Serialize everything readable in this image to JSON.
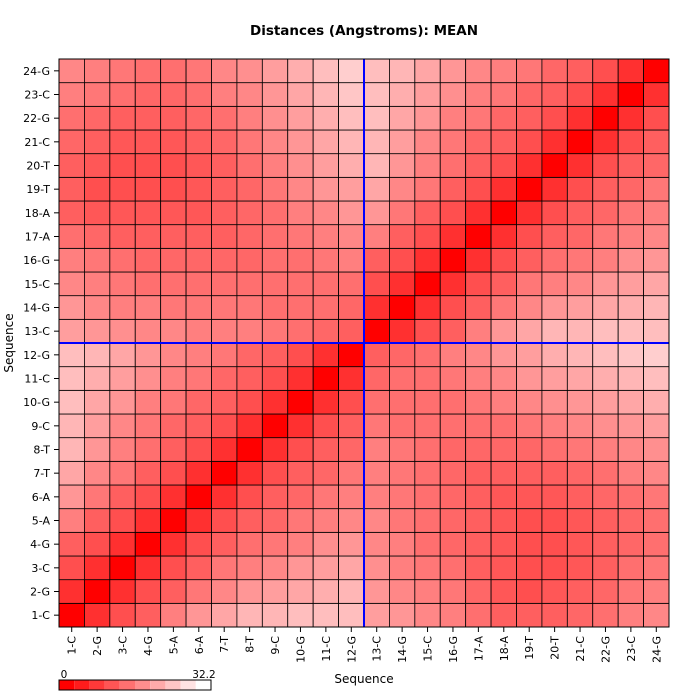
{
  "chart_data": {
    "type": "heatmap",
    "title": "Distances (Angstroms):  MEAN",
    "xlabel": "Sequence",
    "ylabel": "Sequence",
    "labels": [
      "1-C",
      "2-G",
      "3-C",
      "4-G",
      "5-A",
      "6-A",
      "7-T",
      "8-T",
      "9-C",
      "10-G",
      "11-C",
      "12-G",
      "13-C",
      "14-G",
      "15-C",
      "16-G",
      "17-A",
      "18-A",
      "19-T",
      "20-T",
      "21-C",
      "22-G",
      "23-C",
      "24-G"
    ],
    "value_range": [
      0,
      32.2
    ],
    "color_scale": {
      "low": "#ff0000",
      "high": "#ffffff"
    },
    "grid": true,
    "chain_divider_after": "12-G",
    "divider_color": "#0000ff",
    "legend": {
      "min_label": "0",
      "max_label": "32.2",
      "placement": "bottom-left"
    },
    "values": [
      [
        0,
        6,
        10,
        12,
        16,
        19,
        21,
        23,
        23,
        24,
        24,
        24,
        20,
        19,
        17,
        16,
        14,
        12,
        12,
        12,
        13,
        14,
        16,
        17
      ],
      [
        6,
        0,
        6,
        10,
        12,
        15,
        17,
        19,
        20,
        21,
        22,
        23,
        19,
        17,
        16,
        15,
        13,
        11,
        10,
        11,
        12,
        13,
        15,
        16
      ],
      [
        10,
        6,
        0,
        6,
        10,
        12,
        15,
        16,
        17,
        19,
        20,
        21,
        18,
        16,
        15,
        14,
        12,
        11,
        10,
        10,
        11,
        12,
        14,
        15
      ],
      [
        12,
        10,
        6,
        0,
        6,
        10,
        12,
        14,
        15,
        16,
        18,
        19,
        17,
        16,
        14,
        13,
        12,
        11,
        10,
        10,
        11,
        12,
        13,
        14
      ],
      [
        16,
        12,
        10,
        6,
        0,
        6,
        10,
        12,
        13,
        15,
        16,
        17,
        17,
        15,
        14,
        13,
        12,
        11,
        10,
        10,
        11,
        12,
        13,
        14
      ],
      [
        19,
        15,
        12,
        10,
        6,
        0,
        6,
        10,
        12,
        13,
        15,
        16,
        16,
        15,
        14,
        13,
        12,
        11,
        11,
        11,
        12,
        13,
        14,
        15
      ],
      [
        21,
        17,
        15,
        12,
        10,
        6,
        0,
        6,
        10,
        12,
        13,
        15,
        16,
        15,
        14,
        13,
        12,
        12,
        12,
        12,
        13,
        14,
        16,
        17
      ],
      [
        23,
        19,
        16,
        14,
        12,
        10,
        6,
        0,
        6,
        10,
        12,
        13,
        16,
        15,
        14,
        13,
        13,
        13,
        13,
        14,
        15,
        16,
        17,
        18
      ],
      [
        23,
        20,
        17,
        15,
        13,
        12,
        10,
        6,
        0,
        6,
        10,
        12,
        15,
        14,
        14,
        14,
        14,
        14,
        15,
        16,
        17,
        18,
        19,
        20
      ],
      [
        24,
        21,
        19,
        16,
        15,
        13,
        12,
        10,
        6,
        0,
        6,
        10,
        14,
        14,
        14,
        14,
        15,
        16,
        17,
        18,
        19,
        20,
        21,
        22
      ],
      [
        24,
        22,
        20,
        18,
        16,
        15,
        13,
        12,
        10,
        6,
        0,
        6,
        13,
        14,
        14,
        15,
        16,
        17,
        19,
        20,
        21,
        22,
        23,
        24
      ],
      [
        24,
        23,
        21,
        19,
        17,
        16,
        15,
        13,
        12,
        10,
        6,
        0,
        12,
        13,
        14,
        16,
        17,
        19,
        20,
        22,
        23,
        24,
        25,
        26
      ],
      [
        20,
        19,
        18,
        17,
        17,
        16,
        16,
        16,
        15,
        14,
        13,
        12,
        0,
        6,
        10,
        12,
        16,
        19,
        21,
        23,
        23,
        24,
        24,
        24
      ],
      [
        19,
        17,
        16,
        16,
        15,
        15,
        15,
        15,
        14,
        14,
        14,
        13,
        6,
        0,
        6,
        10,
        12,
        15,
        17,
        19,
        20,
        21,
        22,
        23
      ],
      [
        17,
        16,
        15,
        14,
        14,
        14,
        14,
        14,
        14,
        14,
        14,
        14,
        10,
        6,
        0,
        6,
        10,
        12,
        15,
        16,
        17,
        19,
        20,
        21
      ],
      [
        16,
        15,
        14,
        13,
        13,
        13,
        13,
        13,
        14,
        14,
        15,
        16,
        12,
        10,
        6,
        0,
        6,
        10,
        12,
        14,
        15,
        16,
        18,
        19
      ],
      [
        14,
        13,
        12,
        12,
        12,
        12,
        12,
        13,
        14,
        15,
        16,
        17,
        16,
        12,
        10,
        6,
        0,
        6,
        10,
        12,
        13,
        15,
        16,
        17
      ],
      [
        12,
        11,
        11,
        11,
        11,
        11,
        12,
        13,
        14,
        16,
        17,
        19,
        19,
        15,
        12,
        10,
        6,
        0,
        6,
        10,
        12,
        13,
        15,
        16
      ],
      [
        12,
        10,
        10,
        10,
        10,
        11,
        12,
        13,
        15,
        17,
        19,
        20,
        21,
        17,
        15,
        12,
        10,
        6,
        0,
        6,
        10,
        12,
        13,
        15
      ],
      [
        12,
        11,
        10,
        10,
        10,
        11,
        12,
        14,
        16,
        18,
        20,
        22,
        23,
        19,
        16,
        14,
        12,
        10,
        6,
        0,
        6,
        10,
        12,
        13
      ],
      [
        13,
        12,
        11,
        11,
        11,
        12,
        13,
        15,
        17,
        19,
        21,
        23,
        23,
        20,
        17,
        15,
        13,
        12,
        10,
        6,
        0,
        6,
        10,
        12
      ],
      [
        14,
        13,
        12,
        12,
        12,
        13,
        14,
        16,
        18,
        20,
        22,
        24,
        24,
        21,
        19,
        16,
        15,
        13,
        12,
        10,
        6,
        0,
        6,
        10
      ],
      [
        16,
        15,
        14,
        13,
        13,
        14,
        16,
        17,
        19,
        21,
        23,
        25,
        24,
        22,
        20,
        18,
        16,
        15,
        13,
        12,
        10,
        6,
        0,
        6
      ],
      [
        17,
        16,
        15,
        14,
        14,
        15,
        17,
        18,
        20,
        22,
        24,
        26,
        24,
        23,
        21,
        19,
        17,
        16,
        15,
        13,
        12,
        10,
        6,
        0
      ]
    ]
  }
}
